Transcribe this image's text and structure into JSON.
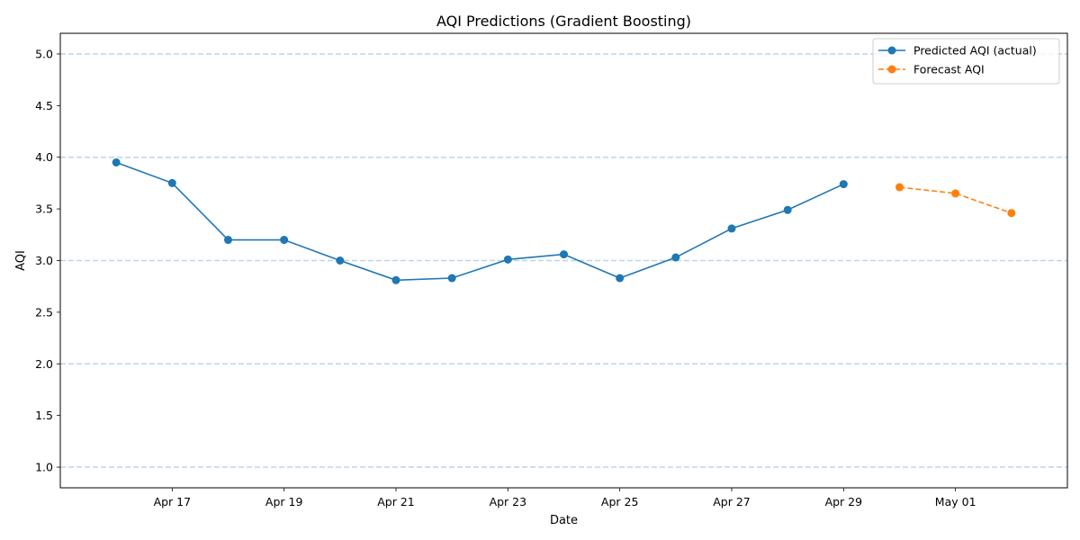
{
  "chart_data": {
    "type": "line",
    "title": "AQI Predictions (Gradient Boosting)",
    "xlabel": "Date",
    "ylabel": "AQI",
    "x_ticks": [
      {
        "date": "2024-04-17",
        "label": "Apr 17"
      },
      {
        "date": "2024-04-19",
        "label": "Apr 19"
      },
      {
        "date": "2024-04-21",
        "label": "Apr 21"
      },
      {
        "date": "2024-04-23",
        "label": "Apr 23"
      },
      {
        "date": "2024-04-25",
        "label": "Apr 25"
      },
      {
        "date": "2024-04-27",
        "label": "Apr 27"
      },
      {
        "date": "2024-04-29",
        "label": "Apr 29"
      },
      {
        "date": "2024-05-01",
        "label": "May 01"
      }
    ],
    "y_ticks": [
      "1.0",
      "1.5",
      "2.0",
      "2.5",
      "3.0",
      "3.5",
      "4.0",
      "4.5",
      "5.0"
    ],
    "xlim": [
      "2024-04-15",
      "2024-05-03"
    ],
    "ylim": [
      0.8,
      5.2
    ],
    "reference_lines_y": [
      1,
      2,
      3,
      4,
      5
    ],
    "grid": false,
    "legend_position": "top-right",
    "series": [
      {
        "name": "Predicted AQI (actual)",
        "color": "#1f77b4",
        "line_style": "solid",
        "marker": "circle",
        "points": [
          {
            "x": "2024-04-16",
            "y": 3.95
          },
          {
            "x": "2024-04-17",
            "y": 3.75
          },
          {
            "x": "2024-04-18",
            "y": 3.2
          },
          {
            "x": "2024-04-19",
            "y": 3.2
          },
          {
            "x": "2024-04-20",
            "y": 3.0
          },
          {
            "x": "2024-04-21",
            "y": 2.81
          },
          {
            "x": "2024-04-22",
            "y": 2.83
          },
          {
            "x": "2024-04-23",
            "y": 3.01
          },
          {
            "x": "2024-04-24",
            "y": 3.06
          },
          {
            "x": "2024-04-25",
            "y": 2.83
          },
          {
            "x": "2024-04-26",
            "y": 3.03
          },
          {
            "x": "2024-04-27",
            "y": 3.31
          },
          {
            "x": "2024-04-28",
            "y": 3.49
          },
          {
            "x": "2024-04-29",
            "y": 3.74
          }
        ]
      },
      {
        "name": "Forecast AQI",
        "color": "#ff7f0e",
        "line_style": "dashed",
        "marker": "circle",
        "points": [
          {
            "x": "2024-04-30",
            "y": 3.71
          },
          {
            "x": "2024-05-01",
            "y": 3.65
          },
          {
            "x": "2024-05-02",
            "y": 3.46
          }
        ]
      }
    ]
  }
}
